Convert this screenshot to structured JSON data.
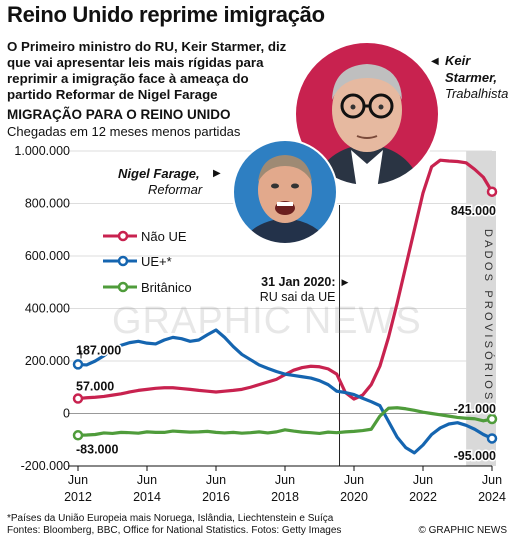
{
  "title": "Reino Unido reprime imigração",
  "lede": "O Primeiro ministro do RU, Keir Starmer, diz que vai apresentar leis mais rígidas para reprimir a imigração face à ameaça do partido Reformar de Nigel Farage",
  "people": [
    {
      "name": "Keir Starmer,",
      "party": "Trabalhista",
      "icon": "portrait-photo"
    },
    {
      "name": "Nigel Farage,",
      "party": "Reformar",
      "icon": "portrait-photo"
    }
  ],
  "footnote": "*Países da União Europeia mais Noruega, Islândia, Liechtenstein e Suíça",
  "sources": "Fontes: Bloomberg, BBC, Office for National Statistics. Fotos: Getty Images",
  "credit": "© GRAPHIC NEWS",
  "watermark": "GRAPHIC NEWS",
  "colors": {
    "nonEU": "#c8224f",
    "eu": "#1565b0",
    "british": "#4f9c3b",
    "provisional": "#d9d9d9"
  },
  "chart_data": {
    "type": "line",
    "title": "MIGRAÇÃO PARA O REINO UNIDO",
    "subtitle": "Chegadas em 12 meses menos partidas",
    "y_ticks": [
      {
        "value": 1000000,
        "label": "1.000.000"
      },
      {
        "value": 800000,
        "label": "800.000"
      },
      {
        "value": 600000,
        "label": "600.000"
      },
      {
        "value": 400000,
        "label": "400.000"
      },
      {
        "value": 200000,
        "label": "200.000"
      },
      {
        "value": 0,
        "label": "0"
      },
      {
        "value": -200000,
        "label": "-200.000"
      }
    ],
    "x_ticks": [
      {
        "year": 2012.5,
        "label": "Jun 2012"
      },
      {
        "year": 2014.5,
        "label": "Jun 2014"
      },
      {
        "year": 2016.5,
        "label": "Jun 2016"
      },
      {
        "year": 2018.5,
        "label": "Jun 2018"
      },
      {
        "year": 2020.5,
        "label": "Jun 2020"
      },
      {
        "year": 2022.5,
        "label": "Jun 2022"
      },
      {
        "year": 2024.5,
        "label": "Jun 2024"
      }
    ],
    "ylim": [
      -200000,
      1000000
    ],
    "xlim": [
      2012.5,
      2024.5
    ],
    "event": {
      "year": 2020.08,
      "date": "31 Jan 2020:",
      "text": "RU sai da UE"
    },
    "provisional": {
      "from": 2023.75,
      "to": 2024.5,
      "label": "DADOS PROVISÓRIOS"
    },
    "series": [
      {
        "name": "Não UE",
        "color": "#c8224f",
        "start_label": "57.000",
        "end_label": "845.000",
        "points": [
          [
            2012.5,
            57000
          ],
          [
            2012.75,
            60000
          ],
          [
            2013.0,
            62000
          ],
          [
            2013.25,
            65000
          ],
          [
            2013.5,
            70000
          ],
          [
            2013.75,
            75000
          ],
          [
            2014.0,
            82000
          ],
          [
            2014.25,
            88000
          ],
          [
            2014.5,
            92000
          ],
          [
            2014.75,
            96000
          ],
          [
            2015.0,
            98000
          ],
          [
            2015.25,
            98000
          ],
          [
            2015.5,
            95000
          ],
          [
            2015.75,
            92000
          ],
          [
            2016.0,
            88000
          ],
          [
            2016.25,
            85000
          ],
          [
            2016.5,
            82000
          ],
          [
            2016.75,
            85000
          ],
          [
            2017.0,
            88000
          ],
          [
            2017.25,
            92000
          ],
          [
            2017.5,
            100000
          ],
          [
            2017.75,
            110000
          ],
          [
            2018.0,
            120000
          ],
          [
            2018.25,
            130000
          ],
          [
            2018.5,
            148000
          ],
          [
            2018.75,
            165000
          ],
          [
            2019.0,
            175000
          ],
          [
            2019.25,
            180000
          ],
          [
            2019.5,
            178000
          ],
          [
            2019.75,
            170000
          ],
          [
            2020.0,
            150000
          ],
          [
            2020.25,
            80000
          ],
          [
            2020.5,
            55000
          ],
          [
            2020.75,
            70000
          ],
          [
            2021.0,
            110000
          ],
          [
            2021.25,
            180000
          ],
          [
            2021.5,
            290000
          ],
          [
            2021.75,
            420000
          ],
          [
            2022.0,
            560000
          ],
          [
            2022.25,
            700000
          ],
          [
            2022.5,
            840000
          ],
          [
            2022.75,
            940000
          ],
          [
            2023.0,
            965000
          ],
          [
            2023.25,
            962000
          ],
          [
            2023.5,
            960000
          ],
          [
            2023.75,
            955000
          ],
          [
            2024.0,
            930000
          ],
          [
            2024.25,
            900000
          ],
          [
            2024.5,
            845000
          ]
        ]
      },
      {
        "name": "UE+*",
        "color": "#1565b0",
        "start_label": "187.000",
        "end_label": "-95.000",
        "points": [
          [
            2012.5,
            187000
          ],
          [
            2012.75,
            185000
          ],
          [
            2013.0,
            200000
          ],
          [
            2013.25,
            220000
          ],
          [
            2013.5,
            245000
          ],
          [
            2013.75,
            260000
          ],
          [
            2014.0,
            270000
          ],
          [
            2014.25,
            275000
          ],
          [
            2014.5,
            268000
          ],
          [
            2014.75,
            265000
          ],
          [
            2015.0,
            280000
          ],
          [
            2015.25,
            290000
          ],
          [
            2015.5,
            285000
          ],
          [
            2015.75,
            275000
          ],
          [
            2016.0,
            280000
          ],
          [
            2016.25,
            300000
          ],
          [
            2016.5,
            318000
          ],
          [
            2016.75,
            290000
          ],
          [
            2017.0,
            255000
          ],
          [
            2017.25,
            225000
          ],
          [
            2017.5,
            205000
          ],
          [
            2017.75,
            185000
          ],
          [
            2018.0,
            172000
          ],
          [
            2018.25,
            160000
          ],
          [
            2018.5,
            150000
          ],
          [
            2018.75,
            145000
          ],
          [
            2019.0,
            140000
          ],
          [
            2019.25,
            135000
          ],
          [
            2019.5,
            125000
          ],
          [
            2019.75,
            110000
          ],
          [
            2020.0,
            85000
          ],
          [
            2020.25,
            80000
          ],
          [
            2020.5,
            72000
          ],
          [
            2020.75,
            58000
          ],
          [
            2021.0,
            45000
          ],
          [
            2021.25,
            30000
          ],
          [
            2021.5,
            -30000
          ],
          [
            2021.75,
            -90000
          ],
          [
            2022.0,
            -130000
          ],
          [
            2022.25,
            -150000
          ],
          [
            2022.5,
            -120000
          ],
          [
            2022.75,
            -80000
          ],
          [
            2023.0,
            -55000
          ],
          [
            2023.25,
            -40000
          ],
          [
            2023.5,
            -35000
          ],
          [
            2023.75,
            -45000
          ],
          [
            2024.0,
            -60000
          ],
          [
            2024.25,
            -80000
          ],
          [
            2024.5,
            -95000
          ]
        ]
      },
      {
        "name": "Britânico",
        "color": "#4f9c3b",
        "start_label": "-83.000",
        "end_label": "-21.000",
        "points": [
          [
            2012.5,
            -83000
          ],
          [
            2012.75,
            -82000
          ],
          [
            2013.0,
            -80000
          ],
          [
            2013.25,
            -74000
          ],
          [
            2013.5,
            -76000
          ],
          [
            2013.75,
            -72000
          ],
          [
            2014.0,
            -73000
          ],
          [
            2014.25,
            -75000
          ],
          [
            2014.5,
            -70000
          ],
          [
            2014.75,
            -72000
          ],
          [
            2015.0,
            -72000
          ],
          [
            2015.25,
            -67000
          ],
          [
            2015.5,
            -69000
          ],
          [
            2015.75,
            -71000
          ],
          [
            2016.0,
            -70000
          ],
          [
            2016.25,
            -68000
          ],
          [
            2016.5,
            -72000
          ],
          [
            2016.75,
            -74000
          ],
          [
            2017.0,
            -72000
          ],
          [
            2017.25,
            -75000
          ],
          [
            2017.5,
            -73000
          ],
          [
            2017.75,
            -70000
          ],
          [
            2018.0,
            -74000
          ],
          [
            2018.25,
            -70000
          ],
          [
            2018.5,
            -62000
          ],
          [
            2018.75,
            -67000
          ],
          [
            2019.0,
            -71000
          ],
          [
            2019.25,
            -73000
          ],
          [
            2019.5,
            -76000
          ],
          [
            2019.75,
            -71000
          ],
          [
            2020.0,
            -73000
          ],
          [
            2020.25,
            -70000
          ],
          [
            2020.5,
            -68000
          ],
          [
            2020.75,
            -65000
          ],
          [
            2021.0,
            -60000
          ],
          [
            2021.25,
            -10000
          ],
          [
            2021.5,
            20000
          ],
          [
            2021.75,
            22000
          ],
          [
            2022.0,
            18000
          ],
          [
            2022.25,
            12000
          ],
          [
            2022.5,
            5000
          ],
          [
            2022.75,
            0
          ],
          [
            2023.0,
            -5000
          ],
          [
            2023.25,
            -10000
          ],
          [
            2023.5,
            -15000
          ],
          [
            2023.75,
            -18000
          ],
          [
            2024.0,
            -20000
          ],
          [
            2024.25,
            -28000
          ],
          [
            2024.5,
            -21000
          ]
        ]
      }
    ]
  }
}
